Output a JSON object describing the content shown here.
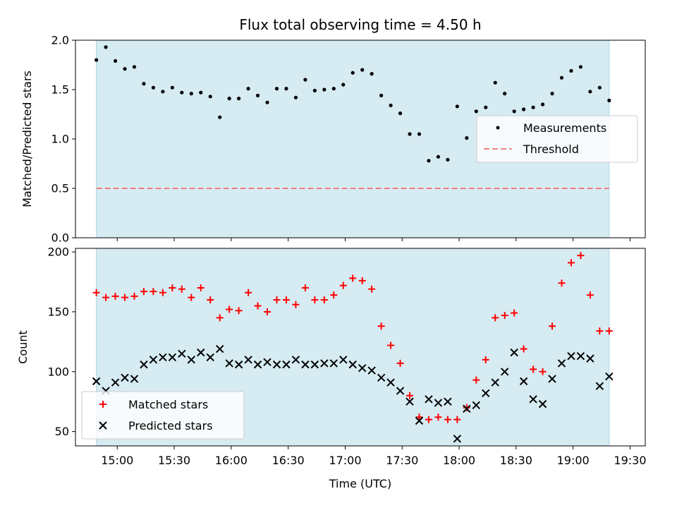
{
  "chart_data": [
    {
      "type": "scatter",
      "title": "Flux total observing time = 4.50 h",
      "ylabel": "Matched/Predicted stars",
      "xlabel": "",
      "ylim": [
        0,
        2.0
      ],
      "yticks": [
        "0.0",
        "0.5",
        "1.0",
        "1.5",
        "2.0"
      ],
      "x_range": [
        "14:38",
        "19:38"
      ],
      "shaded_span": [
        "14:49",
        "19:19"
      ],
      "legend": {
        "position": "center-right",
        "entries": [
          "Measurements",
          "Threshold"
        ]
      },
      "threshold": {
        "name": "Threshold",
        "value": 0.5,
        "color": "#f08080"
      },
      "series": [
        {
          "name": "Measurements",
          "marker": "dot",
          "color": "#000000",
          "x": [
            "14:49",
            "14:54",
            "14:59",
            "15:04",
            "15:09",
            "15:14",
            "15:19",
            "15:24",
            "15:29",
            "15:34",
            "15:39",
            "15:44",
            "15:49",
            "15:54",
            "15:59",
            "16:04",
            "16:09",
            "16:14",
            "16:19",
            "16:24",
            "16:29",
            "16:34",
            "16:39",
            "16:44",
            "16:49",
            "16:54",
            "16:59",
            "17:04",
            "17:09",
            "17:14",
            "17:19",
            "17:24",
            "17:29",
            "17:34",
            "17:39",
            "17:44",
            "17:49",
            "17:54",
            "17:59",
            "18:04",
            "18:09",
            "18:14",
            "18:19",
            "18:24",
            "18:29",
            "18:34",
            "18:39",
            "18:44",
            "18:49",
            "18:54",
            "18:59",
            "19:04",
            "19:09",
            "19:14",
            "19:19"
          ],
          "y": [
            1.8,
            1.93,
            1.79,
            1.71,
            1.73,
            1.56,
            1.52,
            1.48,
            1.52,
            1.47,
            1.46,
            1.47,
            1.43,
            1.22,
            1.41,
            1.41,
            1.51,
            1.44,
            1.37,
            1.51,
            1.51,
            1.42,
            1.6,
            1.49,
            1.5,
            1.51,
            1.55,
            1.67,
            1.7,
            1.66,
            1.44,
            1.34,
            1.26,
            1.05,
            1.05,
            0.78,
            0.82,
            0.79,
            1.33,
            1.01,
            1.28,
            1.32,
            1.57,
            1.46,
            1.28,
            1.3,
            1.32,
            1.35,
            1.46,
            1.62,
            1.69,
            1.73,
            1.48,
            1.52,
            1.39
          ]
        }
      ]
    },
    {
      "type": "scatter",
      "title": "",
      "ylabel": "Count",
      "xlabel": "Time (UTC)",
      "ylim": [
        38,
        203
      ],
      "yticks": [
        "50",
        "100",
        "150",
        "200"
      ],
      "xticks": [
        "15:00",
        "15:30",
        "16:00",
        "16:30",
        "17:00",
        "17:30",
        "18:00",
        "18:30",
        "19:00",
        "19:30"
      ],
      "x_range": [
        "14:38",
        "19:38"
      ],
      "shaded_span": [
        "14:49",
        "19:19"
      ],
      "legend": {
        "position": "bottom-left",
        "entries": [
          "Matched stars",
          "Predicted stars"
        ]
      },
      "series": [
        {
          "name": "Matched stars",
          "marker": "plus",
          "color": "#ff0000",
          "x": [
            "14:49",
            "14:54",
            "14:59",
            "15:04",
            "15:09",
            "15:14",
            "15:19",
            "15:24",
            "15:29",
            "15:34",
            "15:39",
            "15:44",
            "15:49",
            "15:54",
            "15:59",
            "16:04",
            "16:09",
            "16:14",
            "16:19",
            "16:24",
            "16:29",
            "16:34",
            "16:39",
            "16:44",
            "16:49",
            "16:54",
            "16:59",
            "17:04",
            "17:09",
            "17:14",
            "17:19",
            "17:24",
            "17:29",
            "17:34",
            "17:39",
            "17:44",
            "17:49",
            "17:54",
            "17:59",
            "18:04",
            "18:09",
            "18:14",
            "18:19",
            "18:24",
            "18:29",
            "18:34",
            "18:39",
            "18:44",
            "18:49",
            "18:54",
            "18:59",
            "19:04",
            "19:09",
            "19:14",
            "19:19"
          ],
          "y": [
            166,
            162,
            163,
            162,
            163,
            167,
            167,
            166,
            170,
            169,
            162,
            170,
            160,
            145,
            152,
            151,
            166,
            155,
            150,
            160,
            160,
            156,
            170,
            160,
            160,
            164,
            172,
            178,
            176,
            169,
            138,
            122,
            107,
            80,
            62,
            60,
            62,
            60,
            60,
            70,
            93,
            110,
            145,
            147,
            149,
            119,
            102,
            100,
            138,
            174,
            191,
            197,
            164,
            134,
            134
          ]
        },
        {
          "name": "Predicted stars",
          "marker": "x",
          "color": "#000000",
          "x": [
            "14:49",
            "14:54",
            "14:59",
            "15:04",
            "15:09",
            "15:14",
            "15:19",
            "15:24",
            "15:29",
            "15:34",
            "15:39",
            "15:44",
            "15:49",
            "15:54",
            "15:59",
            "16:04",
            "16:09",
            "16:14",
            "16:19",
            "16:24",
            "16:29",
            "16:34",
            "16:39",
            "16:44",
            "16:49",
            "16:54",
            "16:59",
            "17:04",
            "17:09",
            "17:14",
            "17:19",
            "17:24",
            "17:29",
            "17:34",
            "17:39",
            "17:44",
            "17:49",
            "17:54",
            "17:59",
            "18:04",
            "18:09",
            "18:14",
            "18:19",
            "18:24",
            "18:29",
            "18:34",
            "18:39",
            "18:44",
            "18:49",
            "18:54",
            "18:59",
            "19:04",
            "19:09",
            "19:14",
            "19:19"
          ],
          "y": [
            92,
            84,
            91,
            95,
            94,
            106,
            110,
            112,
            112,
            115,
            110,
            116,
            112,
            119,
            107,
            106,
            110,
            106,
            108,
            106,
            106,
            110,
            106,
            106,
            107,
            107,
            110,
            106,
            103,
            101,
            95,
            91,
            84,
            75,
            59,
            77,
            74,
            75,
            44,
            69,
            72,
            82,
            91,
            100,
            116,
            92,
            77,
            73,
            94,
            107,
            113,
            113,
            111,
            88,
            96
          ]
        }
      ]
    }
  ]
}
